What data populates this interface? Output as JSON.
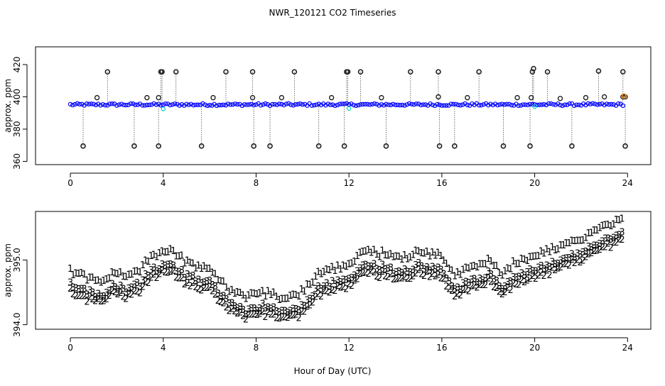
{
  "title": "NWR_120121  CO2 Timeseries",
  "xlabel": "Hour of Day (UTC)",
  "colors": {
    "circle_main": "#0000ff",
    "circle_dark": "#222222",
    "circle_cyan": "#00cccc",
    "circle_orange": "#ff8800",
    "series1": "#dd0000",
    "series2": "#00cc00",
    "series3": "#0000cc"
  },
  "chart_data": [
    {
      "type": "scatter",
      "ylabel": "approx. ppm",
      "xlim": [
        -1.5,
        25
      ],
      "ylim": [
        358,
        431
      ],
      "xticks": [
        0,
        4,
        8,
        12,
        16,
        20,
        24
      ],
      "xtick_labels": [
        "0",
        "4",
        "8",
        "12",
        "16",
        "20",
        "24"
      ],
      "yticks": [
        360,
        380,
        400,
        420
      ],
      "ytick_labels": [
        "360",
        "380",
        "400",
        "420"
      ],
      "baseline": 395.2,
      "high_spikes": [
        {
          "x": 1.6,
          "y": 415.5
        },
        {
          "x": 3.9,
          "y": 415.5
        },
        {
          "x": 3.95,
          "y": 415.5
        },
        {
          "x": 4.55,
          "y": 415.5
        },
        {
          "x": 6.7,
          "y": 415.5
        },
        {
          "x": 7.85,
          "y": 415.5
        },
        {
          "x": 9.65,
          "y": 415.5
        },
        {
          "x": 11.9,
          "y": 415.5
        },
        {
          "x": 11.95,
          "y": 415.5
        },
        {
          "x": 12.5,
          "y": 415.5
        },
        {
          "x": 14.65,
          "y": 415.5
        },
        {
          "x": 15.85,
          "y": 415.5
        },
        {
          "x": 17.6,
          "y": 415.5
        },
        {
          "x": 19.9,
          "y": 415.5
        },
        {
          "x": 19.95,
          "y": 417.5
        },
        {
          "x": 20.55,
          "y": 415.5
        },
        {
          "x": 22.75,
          "y": 416.0
        },
        {
          "x": 23.8,
          "y": 415.5
        }
      ],
      "low_spikes": [
        {
          "x": 0.55,
          "y": 369.5
        },
        {
          "x": 2.75,
          "y": 369.5
        },
        {
          "x": 3.8,
          "y": 369.5
        },
        {
          "x": 5.65,
          "y": 369.5
        },
        {
          "x": 7.9,
          "y": 369.5
        },
        {
          "x": 8.6,
          "y": 369.5
        },
        {
          "x": 10.7,
          "y": 369.5
        },
        {
          "x": 11.8,
          "y": 369.5
        },
        {
          "x": 13.6,
          "y": 369.5
        },
        {
          "x": 15.9,
          "y": 369.5
        },
        {
          "x": 16.55,
          "y": 369.5
        },
        {
          "x": 18.65,
          "y": 369.5
        },
        {
          "x": 19.8,
          "y": 369.5
        },
        {
          "x": 21.6,
          "y": 369.5
        },
        {
          "x": 23.9,
          "y": 369.5
        }
      ],
      "mid_points": [
        {
          "x": 1.15,
          "y": 399.5
        },
        {
          "x": 3.3,
          "y": 399.5
        },
        {
          "x": 3.8,
          "y": 399.5
        },
        {
          "x": 6.15,
          "y": 399.5
        },
        {
          "x": 7.85,
          "y": 399.5
        },
        {
          "x": 9.1,
          "y": 399.5
        },
        {
          "x": 11.25,
          "y": 399.5
        },
        {
          "x": 13.4,
          "y": 399.5
        },
        {
          "x": 15.85,
          "y": 400.0
        },
        {
          "x": 17.1,
          "y": 399.5
        },
        {
          "x": 19.25,
          "y": 399.5
        },
        {
          "x": 19.85,
          "y": 399.5
        },
        {
          "x": 21.1,
          "y": 399.0
        },
        {
          "x": 22.2,
          "y": 399.5
        },
        {
          "x": 23.0,
          "y": 400.0
        },
        {
          "x": 23.8,
          "y": 400.0
        },
        {
          "x": 23.9,
          "y": 400.0
        }
      ],
      "outlier_points": [
        {
          "x": 4.0,
          "y": 392.5,
          "color": "cyan"
        },
        {
          "x": 12.0,
          "y": 392.8,
          "color": "cyan"
        },
        {
          "x": 20.0,
          "y": 394.0,
          "color": "cyan"
        }
      ]
    },
    {
      "type": "scatter",
      "ylabel": "approx. ppm",
      "xlim": [
        -1.5,
        25
      ],
      "ylim": [
        393.93,
        395.75
      ],
      "xticks": [
        0,
        4,
        8,
        12,
        16,
        20,
        24
      ],
      "xtick_labels": [
        "0",
        "4",
        "8",
        "12",
        "16",
        "20",
        "24"
      ],
      "yticks": [
        394.0,
        395.0
      ],
      "ytick_labels": [
        "394.0",
        "395.0"
      ],
      "markers": [
        "1",
        "2",
        "3"
      ],
      "sample_interval_hours": 0.12,
      "offset_series1": 0.22,
      "offset_series2": -0.1,
      "trend": [
        {
          "x": 0.0,
          "y": 394.62
        },
        {
          "x": 0.4,
          "y": 394.55
        },
        {
          "x": 1.4,
          "y": 394.42
        },
        {
          "x": 1.8,
          "y": 394.6
        },
        {
          "x": 2.4,
          "y": 394.52
        },
        {
          "x": 3.0,
          "y": 394.62
        },
        {
          "x": 3.5,
          "y": 394.85
        },
        {
          "x": 4.3,
          "y": 394.92
        },
        {
          "x": 5.0,
          "y": 394.75
        },
        {
          "x": 6.0,
          "y": 394.62
        },
        {
          "x": 6.8,
          "y": 394.35
        },
        {
          "x": 7.5,
          "y": 394.2
        },
        {
          "x": 8.3,
          "y": 394.27
        },
        {
          "x": 9.0,
          "y": 394.2
        },
        {
          "x": 9.8,
          "y": 394.22
        },
        {
          "x": 10.6,
          "y": 394.55
        },
        {
          "x": 11.3,
          "y": 394.65
        },
        {
          "x": 12.0,
          "y": 394.68
        },
        {
          "x": 12.6,
          "y": 394.9
        },
        {
          "x": 13.4,
          "y": 394.88
        },
        {
          "x": 14.3,
          "y": 394.8
        },
        {
          "x": 15.0,
          "y": 394.9
        },
        {
          "x": 15.9,
          "y": 394.86
        },
        {
          "x": 16.6,
          "y": 394.55
        },
        {
          "x": 17.5,
          "y": 394.68
        },
        {
          "x": 18.1,
          "y": 394.8
        },
        {
          "x": 18.5,
          "y": 394.55
        },
        {
          "x": 19.2,
          "y": 394.75
        },
        {
          "x": 20.0,
          "y": 394.85
        },
        {
          "x": 21.0,
          "y": 394.95
        },
        {
          "x": 22.0,
          "y": 395.12
        },
        {
          "x": 23.0,
          "y": 395.28
        },
        {
          "x": 23.8,
          "y": 395.42
        }
      ]
    }
  ]
}
